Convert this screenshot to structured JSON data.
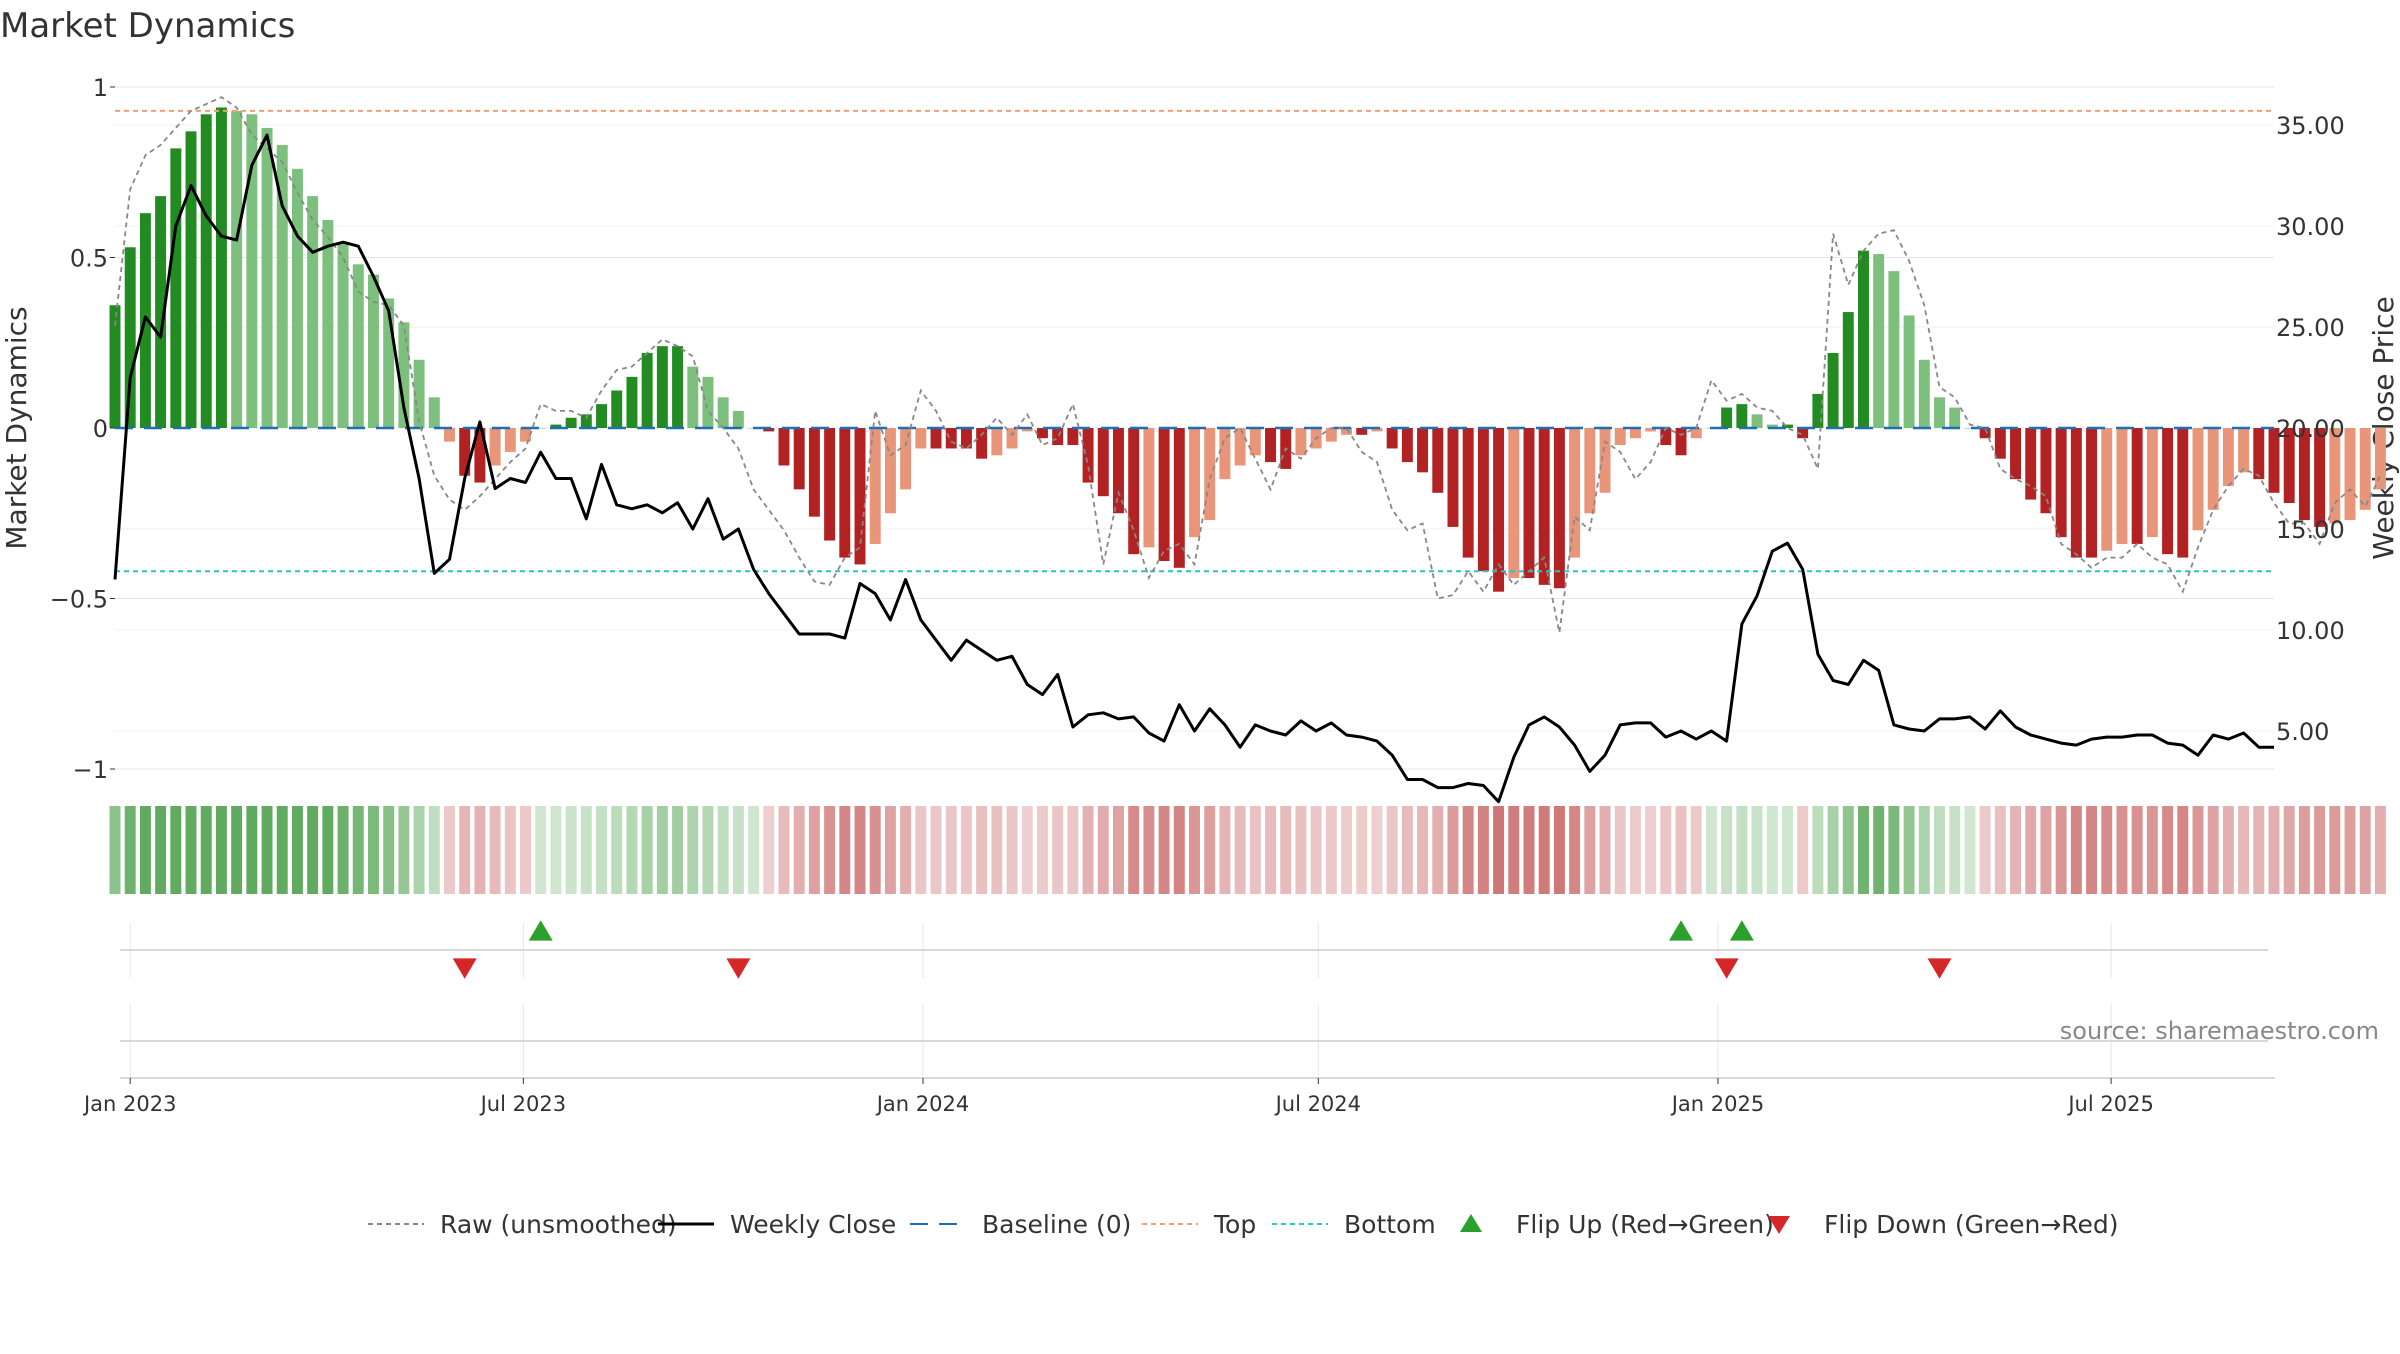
{
  "chart_data": {
    "type": "bar",
    "title": "Market Dynamics",
    "ylabel": "Market Dynamics",
    "y2label": "Weekly Close Price",
    "ylim": [
      -1,
      1
    ],
    "y2lim": [
      0,
      36.6
    ],
    "yticks": [
      {
        "value": 1,
        "label": "1"
      },
      {
        "value": 0.5,
        "label": "0.5"
      },
      {
        "value": 0,
        "label": "0"
      },
      {
        "value": -0.5,
        "label": "−0.5"
      },
      {
        "value": -1,
        "label": "−1"
      }
    ],
    "y2ticks": [
      {
        "value": 35,
        "label": "35.00"
      },
      {
        "value": 30,
        "label": "30.00"
      },
      {
        "value": 25,
        "label": "25.00"
      },
      {
        "value": 20,
        "label": "20.00"
      },
      {
        "value": 15,
        "label": "15.00"
      },
      {
        "value": 10,
        "label": "10.00"
      },
      {
        "value": 5,
        "label": "5.00"
      }
    ],
    "x_start": "2022-12-25",
    "x_end": "2025-09-14",
    "xticks": [
      {
        "date": "2023-01-01",
        "label": "Jan 2023"
      },
      {
        "date": "2023-07-01",
        "label": "Jul 2023"
      },
      {
        "date": "2024-01-01",
        "label": "Jan 2024"
      },
      {
        "date": "2024-07-01",
        "label": "Jul 2024"
      },
      {
        "date": "2025-01-01",
        "label": "Jan 2025"
      },
      {
        "date": "2025-07-01",
        "label": "Jul 2025"
      }
    ],
    "top_level": 0.93,
    "bottom_level": -0.42,
    "grid": true,
    "legend_position": "bottom",
    "colors": {
      "green_strong": "#228b22",
      "green_light": "#7dbf7d",
      "red_strong": "#b22222",
      "red_light": "#e8957a",
      "price_line": "#000000",
      "raw_line": "#888888",
      "baseline": "#1f6fb5",
      "top": "#f0a070",
      "bottom": "#2bc4c4",
      "flip_up": "#2ca02c",
      "flip_down": "#d62728"
    },
    "series": [
      {
        "name": "Market Dynamics",
        "start_date": "2022-12-25",
        "interval_days": 7,
        "values": [
          0.36,
          0.53,
          0.63,
          0.68,
          0.82,
          0.87,
          0.92,
          0.94,
          0.93,
          0.92,
          0.88,
          0.83,
          0.76,
          0.68,
          0.61,
          0.54,
          0.48,
          0.45,
          0.38,
          0.31,
          0.2,
          0.09,
          -0.04,
          -0.14,
          -0.16,
          -0.11,
          -0.07,
          -0.04,
          0.0,
          0.01,
          0.03,
          0.04,
          0.07,
          0.11,
          0.15,
          0.22,
          0.24,
          0.24,
          0.18,
          0.15,
          0.09,
          0.05,
          0.0,
          -0.01,
          -0.11,
          -0.18,
          -0.26,
          -0.33,
          -0.38,
          -0.4,
          -0.34,
          -0.25,
          -0.18,
          -0.06,
          -0.06,
          -0.06,
          -0.06,
          -0.09,
          -0.08,
          -0.06,
          -0.01,
          -0.03,
          -0.05,
          -0.05,
          -0.16,
          -0.2,
          -0.25,
          -0.37,
          -0.35,
          -0.39,
          -0.41,
          -0.32,
          -0.27,
          -0.15,
          -0.11,
          -0.08,
          -0.1,
          -0.12,
          -0.08,
          -0.06,
          -0.04,
          -0.02,
          -0.02,
          -0.01,
          -0.06,
          -0.1,
          -0.13,
          -0.19,
          -0.29,
          -0.38,
          -0.42,
          -0.48,
          -0.44,
          -0.44,
          -0.46,
          -0.47,
          -0.38,
          -0.25,
          -0.19,
          -0.05,
          -0.03,
          -0.01,
          -0.05,
          -0.08,
          -0.03,
          0.0,
          0.06,
          0.07,
          0.04,
          0.01,
          0.01,
          -0.03,
          0.1,
          0.22,
          0.34,
          0.52,
          0.51,
          0.46,
          0.33,
          0.2,
          0.09,
          0.06,
          0.0,
          -0.03,
          -0.09,
          -0.15,
          -0.21,
          -0.25,
          -0.32,
          -0.38,
          -0.38,
          -0.36,
          -0.34,
          -0.34,
          -0.32,
          -0.37,
          -0.38,
          -0.3,
          -0.24,
          -0.17,
          -0.13,
          -0.15,
          -0.19,
          -0.22,
          -0.27,
          -0.29,
          -0.28,
          -0.27,
          -0.24,
          -0.18
        ]
      },
      {
        "name": "Raw (unsmoothed)",
        "start_date": "2022-12-25",
        "interval_days": 7,
        "values": [
          0.3,
          0.7,
          0.8,
          0.83,
          0.88,
          0.93,
          0.95,
          0.97,
          0.94,
          0.86,
          0.82,
          0.78,
          0.69,
          0.61,
          0.56,
          0.5,
          0.4,
          0.37,
          0.36,
          0.3,
          0.02,
          -0.14,
          -0.21,
          -0.24,
          -0.2,
          -0.15,
          -0.1,
          -0.06,
          0.07,
          0.05,
          0.05,
          0.03,
          0.11,
          0.17,
          0.18,
          0.22,
          0.26,
          0.24,
          0.21,
          0.05,
          0.0,
          -0.06,
          -0.18,
          -0.24,
          -0.3,
          -0.38,
          -0.45,
          -0.46,
          -0.38,
          -0.35,
          0.05,
          -0.08,
          -0.05,
          0.11,
          0.05,
          -0.04,
          -0.06,
          -0.02,
          0.03,
          -0.02,
          0.04,
          -0.05,
          -0.03,
          0.07,
          -0.11,
          -0.4,
          -0.19,
          -0.3,
          -0.44,
          -0.36,
          -0.34,
          -0.4,
          -0.15,
          -0.03,
          0.0,
          -0.09,
          -0.18,
          -0.06,
          -0.09,
          -0.03,
          0.0,
          0.0,
          -0.07,
          -0.1,
          -0.24,
          -0.3,
          -0.28,
          -0.5,
          -0.49,
          -0.42,
          -0.48,
          -0.4,
          -0.46,
          -0.42,
          -0.38,
          -0.6,
          -0.26,
          -0.3,
          -0.04,
          -0.07,
          -0.15,
          -0.1,
          0.0,
          -0.02,
          0.0,
          0.14,
          0.08,
          0.1,
          0.06,
          0.05,
          0.0,
          -0.02,
          -0.12,
          0.57,
          0.42,
          0.52,
          0.57,
          0.58,
          0.49,
          0.36,
          0.12,
          0.09,
          0.01,
          0.0,
          -0.12,
          -0.15,
          -0.17,
          -0.2,
          -0.34,
          -0.37,
          -0.41,
          -0.38,
          -0.38,
          -0.34,
          -0.38,
          -0.4,
          -0.48,
          -0.35,
          -0.24,
          -0.17,
          -0.12,
          -0.14,
          -0.22,
          -0.28,
          -0.28,
          -0.34,
          -0.22,
          -0.18,
          -0.23,
          -0.14
        ]
      },
      {
        "name": "Weekly Close",
        "axis": "right",
        "start_date": "2022-12-25",
        "interval_days": 7,
        "values": [
          12.5,
          22.5,
          25.5,
          24.5,
          30.0,
          32.0,
          30.5,
          29.5,
          29.3,
          33.0,
          34.5,
          31.0,
          29.5,
          28.7,
          29.0,
          29.2,
          29.0,
          27.5,
          25.8,
          21.0,
          17.5,
          12.8,
          13.5,
          17.5,
          20.3,
          17.0,
          17.5,
          17.3,
          18.8,
          17.5,
          17.5,
          15.5,
          18.2,
          16.2,
          16.0,
          16.2,
          15.8,
          16.3,
          15.0,
          16.5,
          14.5,
          15.0,
          13.0,
          11.8,
          10.8,
          9.8,
          9.8,
          9.8,
          9.6,
          12.3,
          11.8,
          10.5,
          12.5,
          10.5,
          9.5,
          8.5,
          9.5,
          9.0,
          8.5,
          8.7,
          7.3,
          6.8,
          7.8,
          5.2,
          5.8,
          5.9,
          5.6,
          5.7,
          4.9,
          4.5,
          6.3,
          5.0,
          6.1,
          5.3,
          4.2,
          5.3,
          5.0,
          4.8,
          5.5,
          5.0,
          5.4,
          4.8,
          4.7,
          4.5,
          3.8,
          2.6,
          2.6,
          2.2,
          2.2,
          2.4,
          2.3,
          1.5,
          3.7,
          5.3,
          5.7,
          5.2,
          4.3,
          3.0,
          3.8,
          5.3,
          5.4,
          5.4,
          4.7,
          5.0,
          4.6,
          5.0,
          4.5,
          10.3,
          11.7,
          13.9,
          14.3,
          13.0,
          8.8,
          7.5,
          7.3,
          8.5,
          8.0,
          5.3,
          5.1,
          5.0,
          5.6,
          5.6,
          5.7,
          5.1,
          6.0,
          5.2,
          4.8,
          4.6,
          4.4,
          4.3,
          4.6,
          4.7,
          4.7,
          4.8,
          4.8,
          4.4,
          4.3,
          3.8,
          4.8,
          4.6,
          4.9,
          4.2,
          4.2
        ]
      },
      {
        "name": "Baseline (0)",
        "values": [
          0
        ]
      },
      {
        "name": "Top",
        "values": [
          0.93
        ]
      },
      {
        "name": "Bottom",
        "values": [
          -0.42
        ]
      }
    ],
    "flips_up": [
      "2023-07-09",
      "2024-12-15",
      "2025-01-12"
    ],
    "flips_down": [
      "2023-06-04",
      "2023-10-08",
      "2025-01-05",
      "2025-04-13"
    ],
    "legend": [
      {
        "label": "Raw (unsmoothed)",
        "style": "dotted",
        "color": "#888888"
      },
      {
        "label": "Weekly Close",
        "style": "solid",
        "color": "#000000"
      },
      {
        "label": "Baseline (0)",
        "style": "dashed",
        "color": "#1f6fb5"
      },
      {
        "label": "Top",
        "style": "dotted",
        "color": "#f0a070"
      },
      {
        "label": "Bottom",
        "style": "dotted",
        "color": "#2bc4c4"
      },
      {
        "label": "Flip Up (Red→Green)",
        "style": "triangle-up",
        "color": "#2ca02c"
      },
      {
        "label": "Flip Down (Green→Red)",
        "style": "triangle-down",
        "color": "#d62728"
      }
    ],
    "annotation": "source: sharemaestro.com"
  }
}
